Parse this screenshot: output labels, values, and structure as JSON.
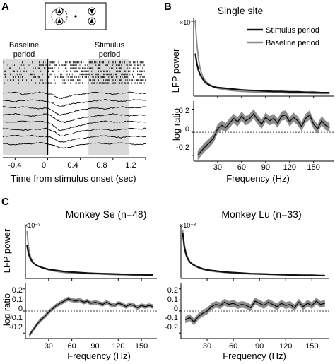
{
  "colors": {
    "stimulus": "#111111",
    "baseline": "#8a8a8a",
    "ci_band": "#8c8c8c",
    "period_shade": "#d9d9d9",
    "axis": "#000000"
  },
  "panel_letters": {
    "a": "A",
    "b": "B",
    "c": "C"
  },
  "panel_a": {
    "baseline_label": [
      "Baseline",
      "period"
    ],
    "stimulus_label": [
      "Stimulus",
      "period"
    ],
    "xlabel": "Time from stimulus onset (sec)",
    "xticks": [
      "-0.4",
      "0",
      "0.4",
      "0.8",
      "1.2"
    ]
  },
  "chart_data": [
    {
      "id": "A-traces",
      "type": "line",
      "x": [
        -0.55,
        -0.4,
        -0.3,
        -0.2,
        -0.1,
        -0.02,
        0.05,
        0.1,
        0.15,
        0.2,
        0.3,
        0.4,
        0.5,
        0.6,
        0.7,
        0.8,
        0.9,
        1.0,
        1.1,
        1.2
      ],
      "xlim": [
        -0.55,
        1.2
      ],
      "baseline_period": [
        -0.55,
        0.0
      ],
      "stimulus_period": [
        0.5,
        1.0
      ],
      "stimulus_onset": 0.0,
      "series": [
        {
          "values": [
            0,
            1,
            -1,
            0,
            1,
            0,
            -1,
            -3,
            -5,
            -4,
            -2,
            -1,
            0,
            1,
            0,
            -1,
            0,
            1,
            0,
            0
          ]
        },
        {
          "values": [
            0,
            -1,
            0,
            1,
            0,
            -1,
            -2,
            -4,
            -6,
            -5,
            -3,
            -2,
            -1,
            0,
            1,
            0,
            -1,
            0,
            1,
            0
          ]
        },
        {
          "values": [
            1,
            0,
            1,
            0,
            -1,
            0,
            -2,
            -5,
            -7,
            -6,
            -4,
            -2,
            -1,
            0,
            -1,
            0,
            1,
            0,
            0,
            1
          ]
        },
        {
          "values": [
            0,
            1,
            0,
            -1,
            0,
            1,
            -1,
            -4,
            -6,
            -7,
            -5,
            -3,
            -2,
            -1,
            0,
            1,
            0,
            -1,
            0,
            0
          ]
        },
        {
          "values": [
            0,
            0,
            1,
            0,
            1,
            0,
            -2,
            -5,
            -8,
            -7,
            -5,
            -3,
            -1,
            0,
            1,
            0,
            0,
            1,
            0,
            0
          ]
        },
        {
          "values": [
            1,
            0,
            -1,
            0,
            0,
            1,
            -1,
            -3,
            -6,
            -6,
            -4,
            -2,
            -1,
            0,
            0,
            -1,
            0,
            1,
            0,
            1
          ]
        },
        {
          "values": [
            0,
            1,
            0,
            1,
            0,
            0,
            -1,
            -3,
            -5,
            -5,
            -3,
            -2,
            -1,
            0,
            1,
            0,
            -1,
            0,
            0,
            0
          ]
        },
        {
          "values": [
            0,
            -1,
            0,
            0,
            1,
            0,
            -1,
            -2,
            -4,
            -4,
            -3,
            -1,
            0,
            1,
            0,
            0,
            1,
            0,
            -1,
            0
          ]
        }
      ],
      "spike_rows": 8,
      "spike_rate_baseline": 0.6,
      "spike_rate_stimulus": 0.9
    },
    {
      "id": "B-power",
      "type": "line",
      "title": "Single site",
      "ylabel": "LFP power",
      "multiplier": "×10⁻³",
      "xlim": [
        0,
        175
      ],
      "ylim": [
        0,
        1.0
      ],
      "x": [
        2,
        4,
        6,
        8,
        10,
        12,
        15,
        20,
        25,
        30,
        40,
        50,
        60,
        70,
        80,
        90,
        100,
        110,
        120,
        130,
        140,
        150,
        160,
        170
      ],
      "series": [
        {
          "name": "Stimulus period",
          "values": [
            0.55,
            0.42,
            0.33,
            0.28,
            0.24,
            0.21,
            0.17,
            0.14,
            0.12,
            0.11,
            0.1,
            0.09,
            0.08,
            0.075,
            0.07,
            0.065,
            0.06,
            0.06,
            0.055,
            0.055,
            0.05,
            0.05,
            0.045,
            0.045
          ]
        },
        {
          "name": "Baseline period",
          "values": [
            0.95,
            0.68,
            0.48,
            0.36,
            0.29,
            0.24,
            0.19,
            0.15,
            0.12,
            0.1,
            0.08,
            0.07,
            0.06,
            0.055,
            0.05,
            0.05,
            0.045,
            0.045,
            0.04,
            0.04,
            0.04,
            0.035,
            0.035,
            0.035
          ]
        }
      ]
    },
    {
      "id": "B-ratio",
      "type": "line",
      "ylabel": "log ratio",
      "xlabel": "Frequency (Hz)",
      "xlim": [
        0,
        175
      ],
      "ylim": [
        -0.25,
        0.27
      ],
      "xticks": [
        30,
        60,
        90,
        120,
        150
      ],
      "yticks": [
        "0.2",
        "0",
        "-0.2"
      ],
      "x": [
        5,
        10,
        15,
        20,
        25,
        30,
        35,
        40,
        45,
        50,
        55,
        60,
        65,
        70,
        75,
        80,
        85,
        90,
        95,
        100,
        105,
        110,
        115,
        120,
        125,
        130,
        135,
        140,
        145,
        150,
        155,
        160,
        165,
        170
      ],
      "values": [
        -0.2,
        -0.16,
        -0.12,
        -0.09,
        -0.05,
        0.03,
        0.06,
        0.04,
        0.08,
        0.12,
        0.09,
        0.14,
        0.1,
        0.12,
        0.16,
        0.11,
        0.07,
        0.13,
        0.1,
        0.12,
        0.08,
        0.14,
        0.15,
        0.09,
        0.13,
        0.1,
        0.05,
        0.12,
        0.15,
        0.07,
        0.03,
        0.1,
        0.06,
        0.04
      ],
      "ci_halfwidth": 0.04
    },
    {
      "id": "C-Se-power",
      "type": "line",
      "title": "Monkey Se (n=48)",
      "ylabel": "LFP power",
      "multiplier": "×10⁻³",
      "xlim": [
        0,
        170
      ],
      "ylim": [
        0,
        1.0
      ],
      "x": [
        2,
        4,
        6,
        8,
        10,
        12,
        15,
        20,
        25,
        30,
        40,
        50,
        60,
        70,
        80,
        90,
        100,
        110,
        120,
        130,
        140,
        150,
        160,
        165
      ],
      "series": [
        {
          "name": "Stimulus period",
          "values": [
            0.62,
            0.46,
            0.38,
            0.33,
            0.29,
            0.27,
            0.24,
            0.21,
            0.19,
            0.17,
            0.15,
            0.13,
            0.12,
            0.11,
            0.1,
            0.095,
            0.09,
            0.085,
            0.08,
            0.075,
            0.07,
            0.07,
            0.065,
            0.065
          ]
        },
        {
          "name": "Baseline period",
          "values": [
            0.88,
            0.58,
            0.43,
            0.35,
            0.3,
            0.27,
            0.24,
            0.21,
            0.18,
            0.16,
            0.13,
            0.11,
            0.1,
            0.095,
            0.09,
            0.085,
            0.08,
            0.075,
            0.07,
            0.07,
            0.065,
            0.06,
            0.06,
            0.06
          ]
        }
      ]
    },
    {
      "id": "C-Se-ratio",
      "type": "line",
      "ylabel": "log ratio",
      "xlabel": "Frequency (Hz)",
      "xlim": [
        0,
        170
      ],
      "ylim": [
        -0.25,
        0.25
      ],
      "xticks": [
        30,
        60,
        90,
        120,
        150
      ],
      "yticks": [
        "0.2",
        "0.1",
        "0",
        "-0.1",
        "-0.2"
      ],
      "x": [
        5,
        10,
        15,
        20,
        25,
        30,
        35,
        40,
        45,
        50,
        55,
        60,
        65,
        70,
        75,
        80,
        85,
        90,
        95,
        100,
        105,
        110,
        115,
        120,
        125,
        130,
        135,
        140,
        145,
        150,
        155,
        160,
        165
      ],
      "values": [
        -0.22,
        -0.17,
        -0.12,
        -0.08,
        -0.05,
        -0.01,
        0.02,
        0.05,
        0.07,
        0.09,
        0.11,
        0.1,
        0.09,
        0.1,
        0.08,
        0.09,
        0.07,
        0.08,
        0.07,
        0.06,
        0.08,
        0.06,
        0.05,
        0.07,
        0.06,
        0.04,
        0.06,
        0.05,
        0.03,
        0.05,
        0.04,
        0.05,
        0.04
      ],
      "ci_halfwidth": 0.02
    },
    {
      "id": "C-Lu-power",
      "type": "line",
      "title": "Monkey Lu (n=33)",
      "multiplier": "×10⁻³",
      "xlim": [
        0,
        170
      ],
      "ylim": [
        0,
        1.0
      ],
      "x": [
        2,
        4,
        6,
        8,
        10,
        12,
        15,
        20,
        25,
        30,
        40,
        50,
        60,
        70,
        80,
        90,
        100,
        110,
        120,
        130,
        140,
        150,
        160,
        165
      ],
      "series": [
        {
          "name": "Stimulus period",
          "values": [
            0.85,
            0.58,
            0.44,
            0.36,
            0.31,
            0.28,
            0.25,
            0.21,
            0.18,
            0.16,
            0.14,
            0.12,
            0.11,
            0.1,
            0.09,
            0.085,
            0.08,
            0.075,
            0.07,
            0.065,
            0.06,
            0.06,
            0.055,
            0.055
          ]
        },
        {
          "name": "Baseline period",
          "values": [
            0.9,
            0.62,
            0.47,
            0.38,
            0.32,
            0.28,
            0.24,
            0.2,
            0.17,
            0.15,
            0.125,
            0.11,
            0.1,
            0.09,
            0.085,
            0.08,
            0.075,
            0.07,
            0.065,
            0.06,
            0.055,
            0.055,
            0.05,
            0.05
          ]
        }
      ]
    },
    {
      "id": "C-Lu-ratio",
      "type": "line",
      "xlabel": "Frequency (Hz)",
      "xlim": [
        0,
        170
      ],
      "ylim": [
        -0.25,
        0.25
      ],
      "xticks": [
        30,
        60,
        90,
        120,
        150
      ],
      "yticks": [
        "0.2",
        "0.1",
        "0",
        "-0.1",
        "-0.2"
      ],
      "x": [
        5,
        10,
        15,
        20,
        25,
        30,
        35,
        40,
        45,
        50,
        55,
        60,
        65,
        70,
        75,
        80,
        85,
        90,
        95,
        100,
        105,
        110,
        115,
        120,
        125,
        130,
        135,
        140,
        145,
        150,
        155,
        160,
        165
      ],
      "values": [
        -0.08,
        -0.06,
        -0.1,
        -0.05,
        -0.02,
        0.0,
        0.04,
        0.06,
        0.05,
        0.08,
        0.06,
        0.07,
        0.05,
        0.06,
        0.05,
        0.03,
        0.09,
        0.07,
        0.05,
        0.08,
        0.06,
        0.04,
        0.07,
        0.05,
        0.06,
        0.03,
        0.08,
        0.04,
        0.07,
        0.05,
        0.09,
        0.06,
        0.07
      ],
      "ci_halfwidth": 0.03
    }
  ]
}
